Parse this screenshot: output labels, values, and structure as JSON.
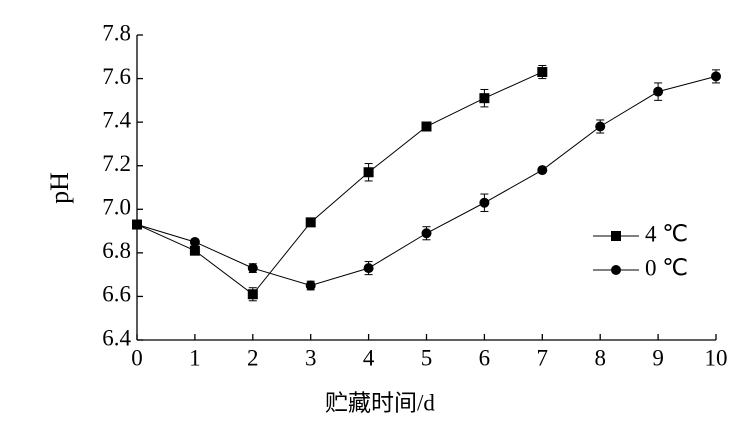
{
  "chart_data": {
    "type": "line",
    "xlabel": "贮藏时间/d",
    "ylabel": "pH",
    "x": [
      0,
      1,
      2,
      3,
      4,
      5,
      6,
      7,
      8,
      9,
      10
    ],
    "xlim": [
      0,
      10
    ],
    "xticks": [
      0,
      1,
      2,
      3,
      4,
      5,
      6,
      7,
      8,
      9,
      10
    ],
    "ylim": [
      6.4,
      7.8
    ],
    "yticks": [
      6.4,
      6.6,
      6.8,
      {
        "value": 7,
        "label": "7.0"
      },
      7.2,
      7.4,
      7.6,
      7.8
    ],
    "grid": false,
    "legend": "right",
    "series": [
      {
        "name": "4 ℃",
        "color": "#000000",
        "marker": "square",
        "values": [
          6.93,
          6.81,
          6.61,
          6.94,
          7.17,
          7.38,
          7.51,
          7.63,
          null,
          null,
          null
        ],
        "errors": [
          0.01,
          0.01,
          0.03,
          0.01,
          0.04,
          0.02,
          0.04,
          0.03,
          null,
          null,
          null
        ]
      },
      {
        "name": "0 ℃",
        "color": "#000000",
        "marker": "circle",
        "values": [
          6.93,
          6.85,
          6.73,
          6.65,
          6.73,
          6.89,
          7.03,
          7.18,
          7.38,
          7.54,
          7.61
        ],
        "errors": [
          0.01,
          0.01,
          0.02,
          0.02,
          0.03,
          0.03,
          0.04,
          0.01,
          0.03,
          0.04,
          0.03
        ]
      }
    ]
  }
}
